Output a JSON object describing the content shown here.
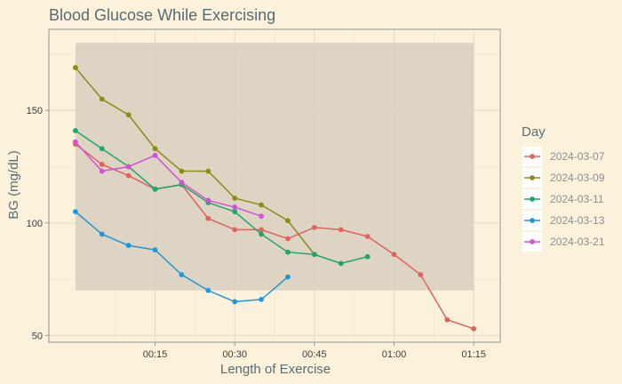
{
  "chart_data": {
    "type": "line",
    "title": "Blood Glucose While Exercising",
    "xlabel": "Length of Exercise",
    "ylabel": "BG (mg/dL)",
    "x_unit": "minutes",
    "xlim": [
      -5,
      80
    ],
    "ylim": [
      47,
      186
    ],
    "x_ticks": [
      {
        "value": 15,
        "label": "00:15"
      },
      {
        "value": 30,
        "label": "00:30"
      },
      {
        "value": 45,
        "label": "00:45"
      },
      {
        "value": 60,
        "label": "01:00"
      },
      {
        "value": 75,
        "label": "01:15"
      }
    ],
    "y_ticks": [
      50,
      100,
      150
    ],
    "target_band": {
      "x": [
        0,
        75
      ],
      "y": [
        70,
        180
      ],
      "color": "#d8cfbe"
    },
    "grid": true,
    "legend": {
      "title": "Day",
      "position": "right"
    },
    "series": [
      {
        "name": "2024-03-07",
        "color": "#e0635e",
        "x": [
          0,
          5,
          10,
          15,
          20,
          25,
          30,
          35,
          40,
          45,
          50,
          55,
          60,
          65,
          70,
          75
        ],
        "y": [
          135,
          126,
          121,
          115,
          117,
          102,
          97,
          97,
          93,
          98,
          97,
          94,
          86,
          77,
          57,
          53
        ]
      },
      {
        "name": "2024-03-09",
        "color": "#8c8c19",
        "x": [
          0,
          5,
          10,
          15,
          20,
          25,
          30,
          35,
          40,
          45
        ],
        "y": [
          169,
          155,
          148,
          133,
          123,
          123,
          111,
          108,
          101,
          86
        ]
      },
      {
        "name": "2024-03-11",
        "color": "#1fa66b",
        "x": [
          0,
          5,
          10,
          15,
          20,
          25,
          30,
          35,
          40,
          45,
          50,
          55
        ],
        "y": [
          141,
          133,
          125,
          115,
          117,
          109,
          105,
          95,
          87,
          86,
          82,
          85
        ]
      },
      {
        "name": "2024-03-13",
        "color": "#2196d8",
        "x": [
          0,
          5,
          10,
          15,
          20,
          25,
          30,
          35,
          40
        ],
        "y": [
          105,
          95,
          90,
          88,
          77,
          70,
          65,
          66,
          76
        ]
      },
      {
        "name": "2024-03-21",
        "color": "#d452d6",
        "x": [
          0,
          5,
          10,
          15,
          20,
          25,
          30,
          35
        ],
        "y": [
          136,
          123,
          125,
          130,
          118,
          110,
          107,
          103
        ]
      }
    ]
  }
}
